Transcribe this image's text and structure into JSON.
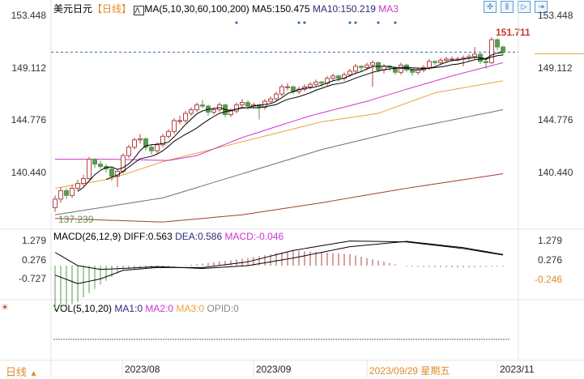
{
  "header": {
    "symbol": "美元日元",
    "period": "【日线】",
    "ma_label": "MA(5,10,30,60,100,200)",
    "ma5": "MA5:150.475",
    "ma10": "MA10:150.219",
    "ma3": "MA3"
  },
  "toolbar_icons": [
    "crosshair-icon",
    "zoom-range-icon",
    "play-icon",
    "exit-icon"
  ],
  "main_axis": {
    "ticks": [
      153.448,
      149.112,
      144.776,
      140.44
    ],
    "labels": [
      "153.448",
      "149.112",
      "144.776",
      "140.440"
    ],
    "high_label": "151.711",
    "low_label": "137.239",
    "current": 150.47
  },
  "colors": {
    "up": "#b04545",
    "down": "#5a9a4f",
    "ma5": "#000000",
    "ma10": "#000000",
    "ma30": "#cc33cc",
    "ma60": "#e8a33d",
    "ma100": "#707070",
    "ma200": "#a04030",
    "dotted": "#2e6da4",
    "date_highlight": "#e08a2a"
  },
  "chart_data": {
    "type": "candlestick",
    "ohlc": [
      [
        137.6,
        138.6,
        137.24,
        138.3
      ],
      [
        138.3,
        139.3,
        138.0,
        139.0
      ],
      [
        139.0,
        139.2,
        138.3,
        138.6
      ],
      [
        138.6,
        139.5,
        138.4,
        139.2
      ],
      [
        139.2,
        139.9,
        139.0,
        139.6
      ],
      [
        139.6,
        140.3,
        139.4,
        140.0
      ],
      [
        140.0,
        141.8,
        139.9,
        141.6
      ],
      [
        141.6,
        141.7,
        140.9,
        141.2
      ],
      [
        141.2,
        141.5,
        140.8,
        141.0
      ],
      [
        141.0,
        141.2,
        140.5,
        140.8
      ],
      [
        140.8,
        141.0,
        139.8,
        140.2
      ],
      [
        140.2,
        140.8,
        139.3,
        140.6
      ],
      [
        140.6,
        142.1,
        140.4,
        141.9
      ],
      [
        141.9,
        142.8,
        141.7,
        142.6
      ],
      [
        142.6,
        143.4,
        142.4,
        143.2
      ],
      [
        143.2,
        143.7,
        142.9,
        143.3
      ],
      [
        143.3,
        143.4,
        142.3,
        142.6
      ],
      [
        142.6,
        142.8,
        142.0,
        142.3
      ],
      [
        142.3,
        143.0,
        142.1,
        142.8
      ],
      [
        142.8,
        143.7,
        142.6,
        143.5
      ],
      [
        143.5,
        144.1,
        143.3,
        143.9
      ],
      [
        143.9,
        145.0,
        143.7,
        144.8
      ],
      [
        144.8,
        145.2,
        144.5,
        144.8
      ],
      [
        144.8,
        145.6,
        144.6,
        145.4
      ],
      [
        145.4,
        145.9,
        145.2,
        145.7
      ],
      [
        145.7,
        146.3,
        145.5,
        146.1
      ],
      [
        146.1,
        146.5,
        145.8,
        146.0
      ],
      [
        146.0,
        146.1,
        145.2,
        145.5
      ],
      [
        145.5,
        145.9,
        145.3,
        145.7
      ],
      [
        145.7,
        146.3,
        145.5,
        146.1
      ],
      [
        146.1,
        146.2,
        145.1,
        145.3
      ],
      [
        145.3,
        145.8,
        145.1,
        145.6
      ],
      [
        145.6,
        146.3,
        145.4,
        146.1
      ],
      [
        146.1,
        146.6,
        145.9,
        146.3
      ],
      [
        146.3,
        146.5,
        145.7,
        146.0
      ],
      [
        146.0,
        146.3,
        145.8,
        146.1
      ],
      [
        146.1,
        146.2,
        144.9,
        145.9
      ],
      [
        145.9,
        146.6,
        145.7,
        146.4
      ],
      [
        146.4,
        146.8,
        146.2,
        146.6
      ],
      [
        146.6,
        147.2,
        146.4,
        147.0
      ],
      [
        147.0,
        147.8,
        146.8,
        147.6
      ],
      [
        147.6,
        147.9,
        147.3,
        147.6
      ],
      [
        147.6,
        147.7,
        147.0,
        147.2
      ],
      [
        147.2,
        147.6,
        147.0,
        147.4
      ],
      [
        147.4,
        147.8,
        147.2,
        147.6
      ],
      [
        147.6,
        148.0,
        147.4,
        147.8
      ],
      [
        147.8,
        148.2,
        147.6,
        148.0
      ],
      [
        148.0,
        148.1,
        147.6,
        147.9
      ],
      [
        147.9,
        148.5,
        147.7,
        148.3
      ],
      [
        148.3,
        148.7,
        148.1,
        148.5
      ],
      [
        148.5,
        148.6,
        148.0,
        148.3
      ],
      [
        148.3,
        148.8,
        148.1,
        148.6
      ],
      [
        148.6,
        149.1,
        148.4,
        148.9
      ],
      [
        148.9,
        149.5,
        148.7,
        149.3
      ],
      [
        149.3,
        149.4,
        148.9,
        149.2
      ],
      [
        149.2,
        149.6,
        149.0,
        149.4
      ],
      [
        149.4,
        149.8,
        147.6,
        149.6
      ],
      [
        149.6,
        149.7,
        148.8,
        149.0
      ],
      [
        149.0,
        149.5,
        148.7,
        149.3
      ],
      [
        149.3,
        149.4,
        148.9,
        149.2
      ],
      [
        149.2,
        149.3,
        148.6,
        148.8
      ],
      [
        148.8,
        149.6,
        148.6,
        149.4
      ],
      [
        149.4,
        149.5,
        148.8,
        149.0
      ],
      [
        149.0,
        149.1,
        148.5,
        148.8
      ],
      [
        148.8,
        149.2,
        148.6,
        149.0
      ],
      [
        149.0,
        149.4,
        148.8,
        149.2
      ],
      [
        149.2,
        149.9,
        149.0,
        149.7
      ],
      [
        149.7,
        149.8,
        149.4,
        149.6
      ],
      [
        149.6,
        150.0,
        149.4,
        149.8
      ],
      [
        149.8,
        150.1,
        149.6,
        149.9
      ],
      [
        149.9,
        150.1,
        149.7,
        149.9
      ],
      [
        149.9,
        150.1,
        149.7,
        149.9
      ],
      [
        149.9,
        150.2,
        149.3,
        150.0
      ],
      [
        150.0,
        150.3,
        149.8,
        150.1
      ],
      [
        150.1,
        150.9,
        149.9,
        150.3
      ],
      [
        150.3,
        150.4,
        149.5,
        149.7
      ],
      [
        149.7,
        150.0,
        149.1,
        149.6
      ],
      [
        149.6,
        151.71,
        149.5,
        151.5
      ],
      [
        151.5,
        151.6,
        150.6,
        150.9
      ],
      [
        150.9,
        151.0,
        150.2,
        150.47
      ]
    ],
    "ma30": [
      [
        0,
        141.6
      ],
      [
        10,
        141.6
      ],
      [
        20,
        141.5
      ],
      [
        25,
        141.9
      ],
      [
        33,
        143.4
      ],
      [
        45,
        145.2
      ],
      [
        55,
        146.4
      ],
      [
        62,
        147.4
      ],
      [
        70,
        148.5
      ],
      [
        79,
        149.6
      ]
    ],
    "ma60": [
      [
        0,
        139.2
      ],
      [
        10,
        140.0
      ],
      [
        19,
        141.4
      ],
      [
        33,
        143.05
      ],
      [
        47,
        144.7
      ],
      [
        57,
        145.4
      ],
      [
        67,
        147.1
      ],
      [
        79,
        148.1
      ]
    ],
    "ma100": [
      [
        0,
        137.0
      ],
      [
        19,
        138.4
      ],
      [
        33,
        140.4
      ],
      [
        47,
        142.4
      ],
      [
        62,
        144.1
      ],
      [
        79,
        145.7
      ]
    ],
    "ma200": [
      [
        0,
        136.7
      ],
      [
        19,
        136.4
      ],
      [
        33,
        137.0
      ],
      [
        47,
        138.0
      ],
      [
        62,
        139.2
      ],
      [
        79,
        140.4
      ]
    ],
    "signal_dots": [
      32,
      43,
      44,
      52,
      53,
      57,
      60
    ],
    "x_labels": [
      "2023/08",
      "2023/09",
      "2023/09/29 星期五",
      "2023/11"
    ]
  },
  "macd": {
    "label": "MACD(26,12,9)",
    "diff": "DIFF:0.563",
    "dea": "DEA:0.586",
    "macd": "MACD:-0.046",
    "ticks": [
      1.279,
      0.276,
      -0.727
    ],
    "labels": [
      "1.279",
      "0.276",
      "-0.727"
    ],
    "marker": "-0.246",
    "diff_pts": [
      [
        0,
        -0.5
      ],
      [
        4,
        -0.95
      ],
      [
        8,
        -0.7
      ],
      [
        12,
        -0.25
      ],
      [
        18,
        -0.1
      ],
      [
        26,
        -0.1
      ],
      [
        34,
        0.2
      ],
      [
        42,
        0.8
      ],
      [
        52,
        1.3
      ],
      [
        62,
        1.25
      ],
      [
        72,
        0.9
      ],
      [
        79,
        0.563
      ]
    ],
    "dea_pts": [
      [
        0,
        0.7
      ],
      [
        4,
        0.0
      ],
      [
        8,
        -0.2
      ],
      [
        12,
        -0.15
      ],
      [
        18,
        -0.05
      ],
      [
        26,
        -0.15
      ],
      [
        34,
        0.0
      ],
      [
        42,
        0.4
      ],
      [
        52,
        1.0
      ],
      [
        62,
        1.28
      ],
      [
        72,
        0.95
      ],
      [
        79,
        0.586
      ]
    ]
  },
  "vol": {
    "label": "VOL(5,10,20)",
    "ma1": "MA1:0",
    "ma2": "MA2:0",
    "ma3": "MA3:0",
    "opid": "OPID:0"
  },
  "footer": {
    "period": "日线",
    "arrow": "▲"
  }
}
